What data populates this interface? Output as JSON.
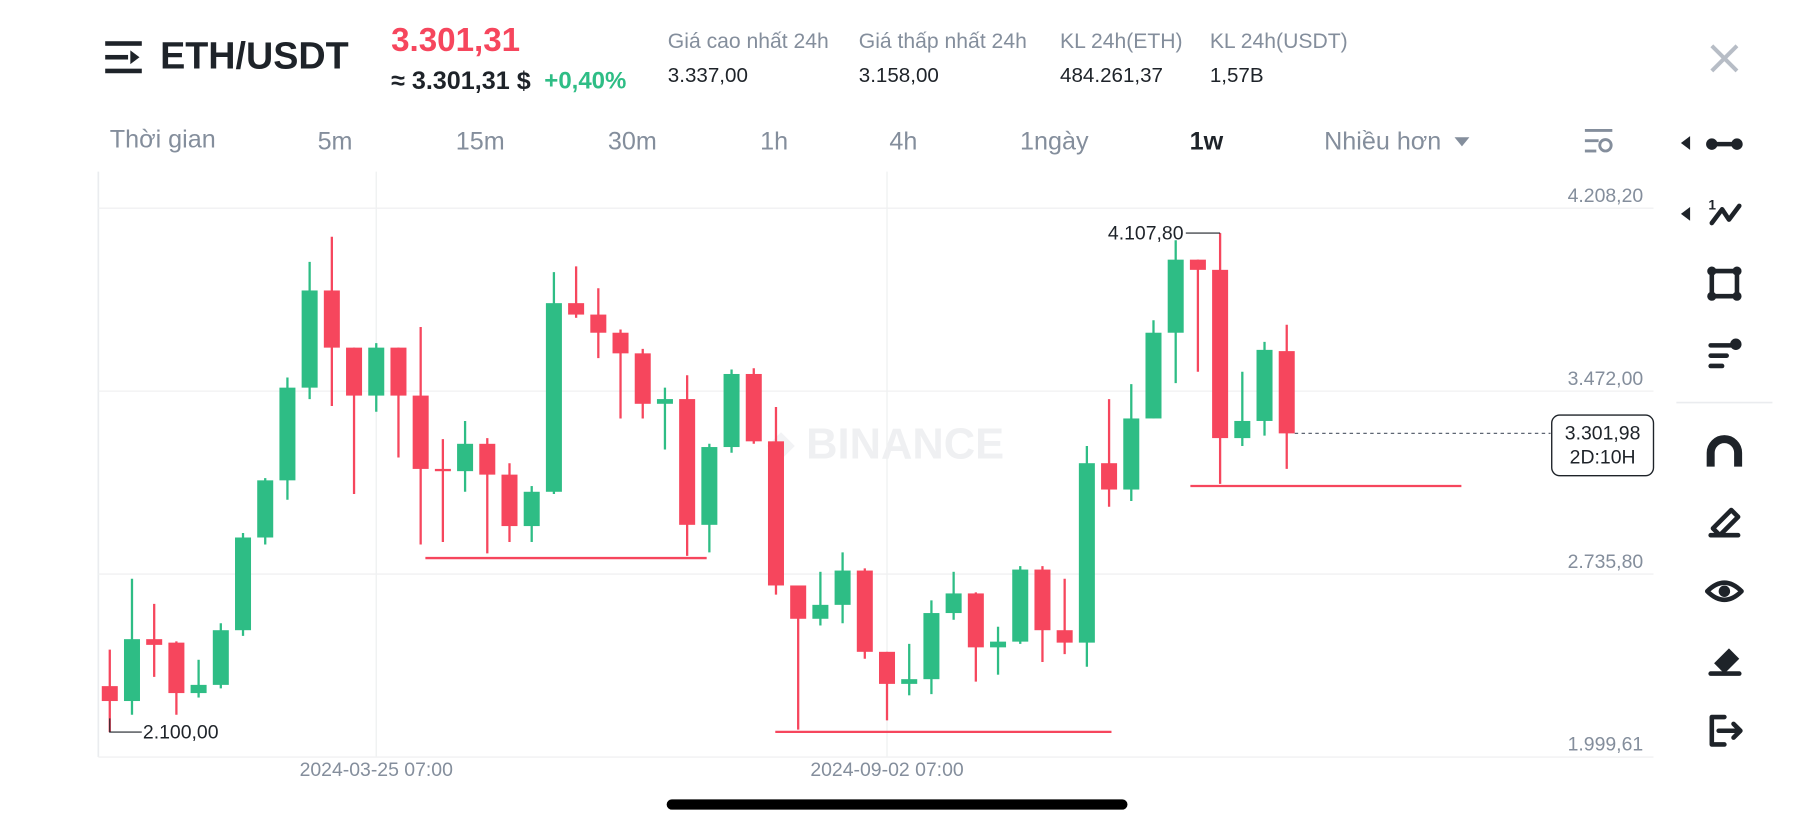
{
  "header": {
    "symbol": "ETH/USDT",
    "price": "3.301,31",
    "price_usd": "≈ 3.301,31 $",
    "change": "+0,40%",
    "stats": [
      {
        "label": "Giá cao nhất 24h",
        "value": "3.337,00"
      },
      {
        "label": "Giá thấp nhất 24h",
        "value": "3.158,00"
      },
      {
        "label": "KL 24h(ETH)",
        "value": "484.261,37"
      },
      {
        "label": "KL 24h(USDT)",
        "value": "1,57B"
      }
    ]
  },
  "timeframes": {
    "label": "Thời gian",
    "options": [
      "5m",
      "15m",
      "30m",
      "1h",
      "4h",
      "1ngày",
      "1w"
    ],
    "active": 6,
    "more": "Nhiều hơn"
  },
  "chart_data": {
    "type": "candlestick",
    "watermark": "BINANCE",
    "categories": [
      null,
      null,
      null,
      null,
      null,
      null,
      null,
      null,
      null,
      null,
      null,
      null,
      "2024-03-25 07:00",
      null,
      null,
      null,
      null,
      null,
      null,
      null,
      null,
      null,
      null,
      null,
      null,
      null,
      null,
      null,
      null,
      null,
      null,
      null,
      null,
      null,
      null,
      "2024-09-02 07:00",
      null,
      null,
      null,
      null,
      null,
      null,
      null,
      null,
      null,
      null,
      null,
      null,
      null,
      null,
      null,
      null,
      null,
      null
    ],
    "open": [
      2285,
      2225,
      2474,
      2460,
      2257,
      2290,
      2510,
      2883,
      3113,
      3486,
      3877,
      3647,
      3454,
      3647,
      3454,
      3159,
      3150,
      3260,
      3136,
      2929,
      3067,
      3826,
      3780,
      3707,
      3624,
      3421,
      3440,
      2934,
      3247,
      3541,
      3270,
      2690,
      2556,
      2612,
      2750,
      2423,
      2294,
      2313,
      2579,
      2658,
      2441,
      2464,
      2754,
      2510,
      2460,
      3182,
      3076,
      3362,
      3707,
      4001,
      3960,
      3283,
      3352,
      3633
    ],
    "high": [
      2432,
      2717,
      2616,
      2465,
      2391,
      2538,
      2901,
      3122,
      3527,
      3992,
      4093,
      3647,
      3665,
      3647,
      3730,
      3279,
      3352,
      3283,
      3182,
      3090,
      3951,
      3974,
      3886,
      3720,
      3642,
      3486,
      3536,
      3260,
      3559,
      3564,
      3408,
      2690,
      2745,
      2823,
      2759,
      2423,
      2455,
      2630,
      2745,
      2662,
      2524,
      2768,
      2768,
      2717,
      3251,
      3440,
      3500,
      3757,
      4079,
      4001,
      4107.8,
      3550,
      3670,
      3739
    ],
    "low": [
      2100,
      2170,
      2322,
      2170,
      2239,
      2276,
      2487,
      2855,
      3035,
      3440,
      3412,
      3058,
      3389,
      3205,
      2855,
      2865,
      3067,
      2819,
      2865,
      2865,
      3058,
      3767,
      3605,
      3362,
      3362,
      3237,
      2809,
      2823,
      3224,
      3260,
      2653,
      2110,
      2529,
      2538,
      2395,
      2147,
      2248,
      2253,
      2552,
      2303,
      2331,
      2455,
      2382,
      2414,
      2363,
      3007,
      3030,
      3362,
      3504,
      3550,
      3099,
      3251,
      3293,
      3159
    ],
    "close": [
      2225,
      2474,
      2451,
      2257,
      2290,
      2510,
      2883,
      3113,
      3486,
      3877,
      3647,
      3454,
      3647,
      3454,
      3159,
      3150,
      3260,
      3136,
      2929,
      3067,
      3826,
      3780,
      3707,
      3624,
      3421,
      3440,
      2934,
      3247,
      3541,
      3270,
      2690,
      2556,
      2612,
      2750,
      2423,
      2294,
      2313,
      2579,
      2658,
      2441,
      2464,
      2754,
      2510,
      2460,
      3182,
      3076,
      3362,
      3707,
      4001,
      3960,
      3283,
      3352,
      3638,
      3301.98
    ],
    "up_color": "#2ebd85",
    "down_color": "#f6465d",
    "ylim": [
      1999.61,
      4355.4
    ],
    "yticks": [
      {
        "value": 4208.2,
        "label": "4.208,20"
      },
      {
        "value": 3472,
        "label": "3.472,00"
      },
      {
        "value": 2735.8,
        "label": "2.735,80"
      },
      {
        "value": 1999.61,
        "label": "1.999,61"
      }
    ],
    "grid": true,
    "high_label": {
      "value": 4107.8,
      "label": "4.107,80"
    },
    "low_label": {
      "value": 2100,
      "label": "2.100,00"
    },
    "last_price": {
      "value": 3301.98,
      "label": "3.301,98",
      "countdown": "2D:10H"
    }
  }
}
